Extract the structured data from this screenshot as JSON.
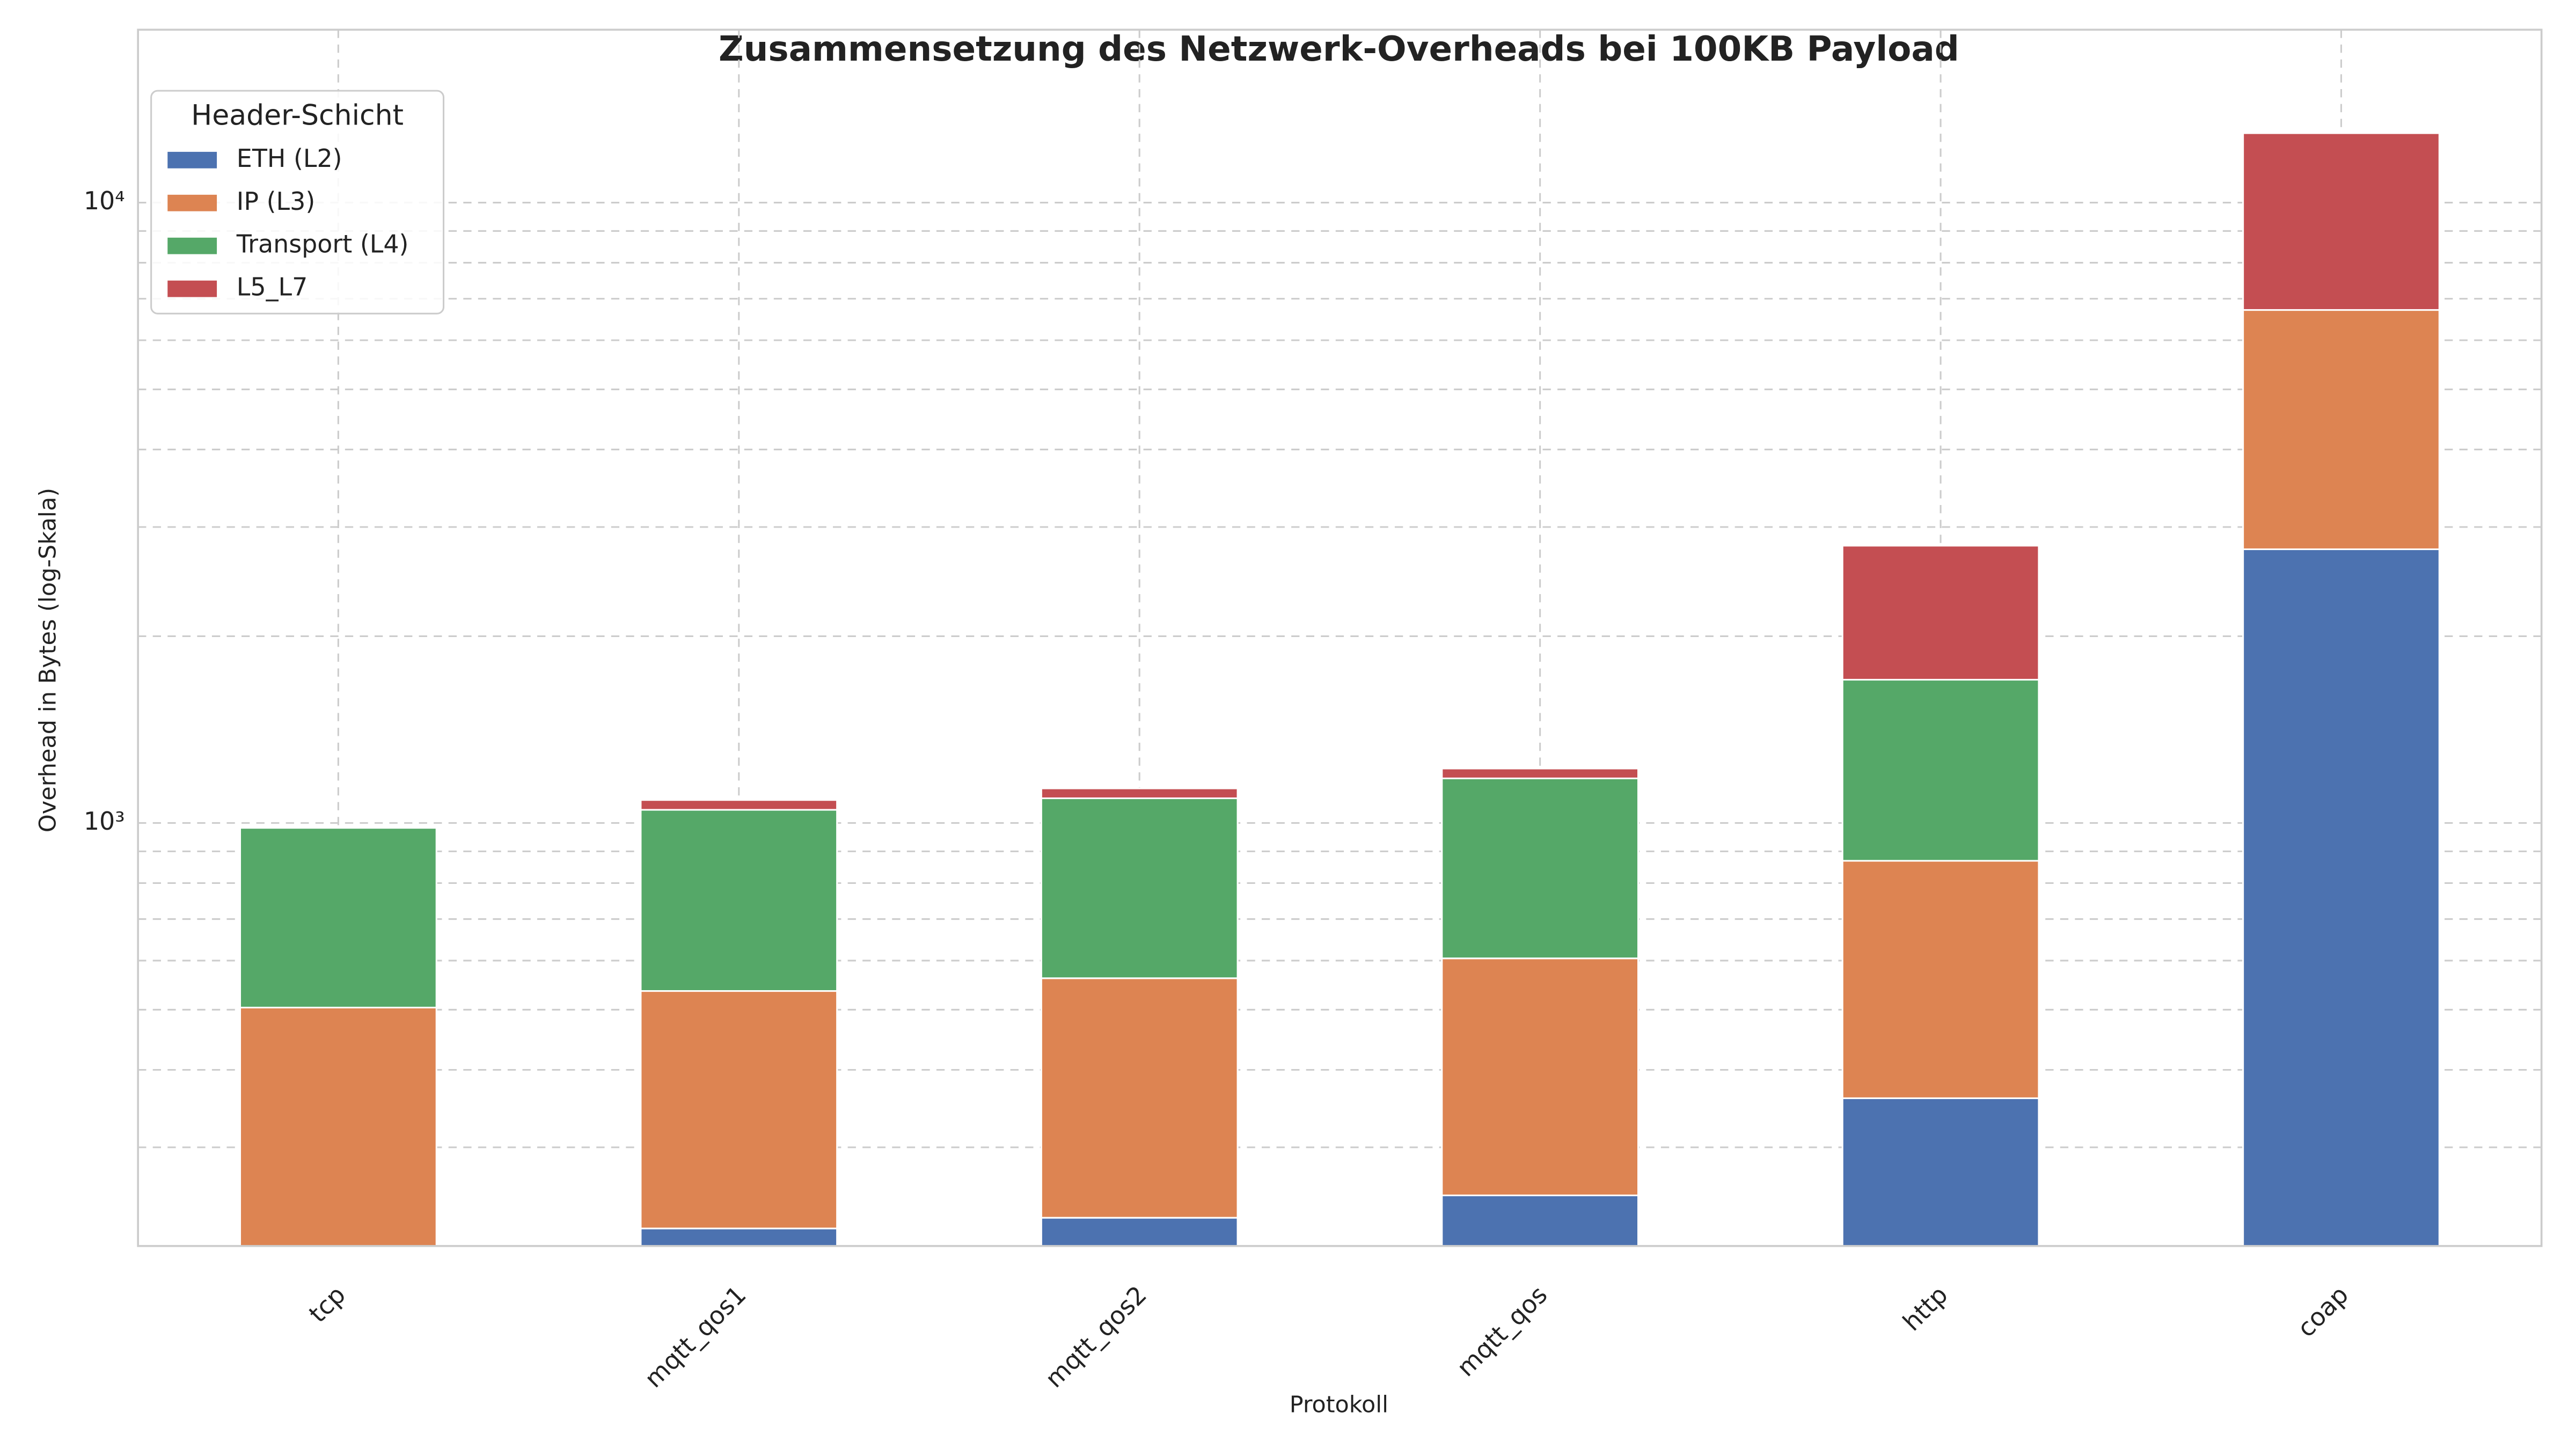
{
  "chart_data": {
    "type": "stacked_bar",
    "title": "Zusammensetzung des Netzwerk-Overheads bei 100KB Payload",
    "x_label": "Protokoll",
    "y_label": "Overhead in Bytes (log-Skala)",
    "legend_title": "Header-Schicht",
    "legend_position": "upper left",
    "log_scale": true,
    "grid": true,
    "categories": [
      "tcp",
      "mqtt_qos1",
      "mqtt_qos2",
      "mqtt_qos",
      "http",
      "coap"
    ],
    "series": [
      {
        "name": "ETH (L2)",
        "color": "#4c72b0",
        "values": [
          0,
          222,
          231,
          251,
          360,
          2762
        ]
      },
      {
        "name": "IP (L3)",
        "color": "#dd8452",
        "values": [
          504,
          314,
          331,
          354,
          509,
          3952
        ]
      },
      {
        "name": "Transport (L4)",
        "color": "#55a868",
        "values": [
          478,
          514,
          534,
          575,
          833,
          0
        ]
      },
      {
        "name": "L5_L7",
        "color": "#c44e52",
        "values": [
          0,
          39,
          41,
          44,
          1097,
          6228
        ]
      }
    ],
    "ylim": [
      208,
      19000
    ],
    "yticks": [
      {
        "value": 1000,
        "label": "10³"
      },
      {
        "value": 10000,
        "label": "10⁴"
      }
    ],
    "minor_yticks": [
      300,
      400,
      500,
      600,
      700,
      800,
      900,
      2000,
      3000,
      4000,
      5000,
      6000,
      7000,
      8000,
      9000
    ]
  }
}
